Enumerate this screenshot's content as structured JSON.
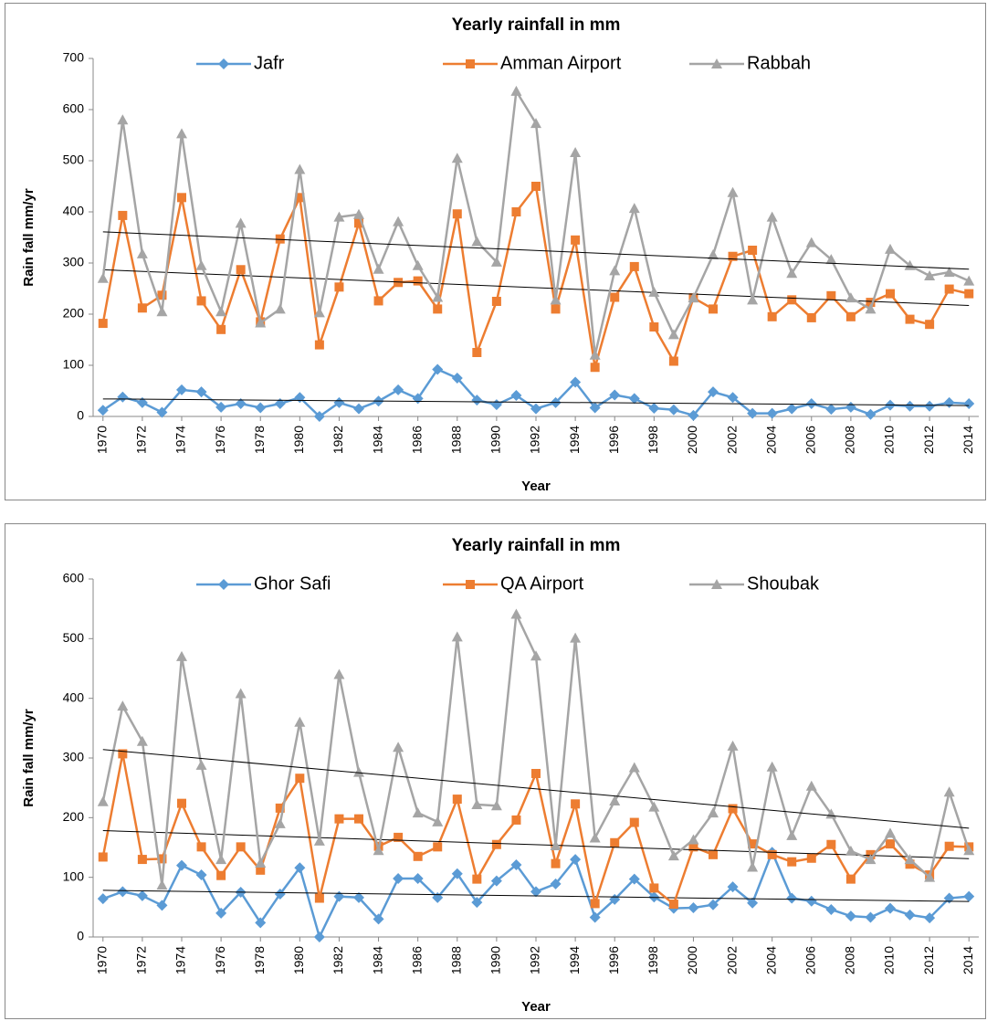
{
  "chart_data": [
    {
      "type": "line",
      "title": "Yearly rainfall in mm",
      "y_label": "Rain fall mm/yr",
      "x_label": "Year",
      "x": [
        1970,
        1971,
        1972,
        1973,
        1974,
        1975,
        1976,
        1977,
        1978,
        1979,
        1980,
        1981,
        1982,
        1983,
        1984,
        1985,
        1986,
        1987,
        1988,
        1989,
        1990,
        1991,
        1992,
        1993,
        1994,
        1995,
        1996,
        1997,
        1998,
        1999,
        2000,
        2001,
        2002,
        2003,
        2004,
        2005,
        2006,
        2007,
        2008,
        2009,
        2010,
        2011,
        2012,
        2013,
        2014
      ],
      "xlim": [
        1969.5,
        2014.5
      ],
      "xticks": [
        1970,
        1972,
        1974,
        1976,
        1978,
        1980,
        1982,
        1984,
        1986,
        1988,
        1990,
        1992,
        1994,
        1996,
        1998,
        2000,
        2002,
        2004,
        2006,
        2008,
        2010,
        2012,
        2014
      ],
      "ylim": [
        0,
        700
      ],
      "yticks": [
        0,
        100,
        200,
        300,
        400,
        500,
        600,
        700
      ],
      "trendline": true,
      "series": [
        {
          "name": "Jafr",
          "color": "#5b9bd5",
          "marker": "diamond",
          "values": [
            12,
            38,
            27,
            8,
            52,
            48,
            18,
            25,
            17,
            25,
            37,
            0,
            27,
            15,
            30,
            52,
            35,
            92,
            75,
            32,
            23,
            41,
            15,
            27,
            67,
            17,
            42,
            35,
            16,
            13,
            2,
            48,
            37,
            6,
            6,
            15,
            25,
            14,
            18,
            4,
            22,
            20,
            20,
            27,
            25
          ]
        },
        {
          "name": "Amman Airport",
          "color": "#ed7d31",
          "marker": "square",
          "values": [
            182,
            393,
            212,
            237,
            428,
            226,
            170,
            287,
            185,
            347,
            428,
            140,
            253,
            378,
            226,
            262,
            265,
            210,
            396,
            125,
            225,
            400,
            450,
            210,
            345,
            96,
            233,
            293,
            175,
            108,
            232,
            210,
            313,
            325,
            195,
            228,
            193,
            236,
            195,
            223,
            240,
            190,
            180,
            249,
            240
          ]
        },
        {
          "name": "Rabbah",
          "color": "#a5a5a5",
          "marker": "triangle",
          "values": [
            270,
            580,
            318,
            205,
            553,
            295,
            205,
            378,
            183,
            210,
            483,
            203,
            390,
            395,
            288,
            381,
            295,
            233,
            505,
            342,
            302,
            636,
            573,
            228,
            516,
            120,
            285,
            407,
            243,
            160,
            232,
            316,
            438,
            228,
            390,
            280,
            340,
            307,
            232,
            210,
            327,
            295,
            275,
            282,
            265
          ]
        }
      ]
    },
    {
      "type": "line",
      "title": "Yearly rainfall in mm",
      "y_label": "Rain fall mm/yr",
      "x_label": "Year",
      "x": [
        1970,
        1971,
        1972,
        1973,
        1974,
        1975,
        1976,
        1977,
        1978,
        1979,
        1980,
        1981,
        1982,
        1983,
        1984,
        1985,
        1986,
        1987,
        1988,
        1989,
        1990,
        1991,
        1992,
        1993,
        1994,
        1995,
        1996,
        1997,
        1998,
        1999,
        2000,
        2001,
        2002,
        2003,
        2004,
        2005,
        2006,
        2007,
        2008,
        2009,
        2010,
        2011,
        2012,
        2013,
        2014
      ],
      "xlim": [
        1969.5,
        2014.5
      ],
      "xticks": [
        1970,
        1972,
        1974,
        1976,
        1978,
        1980,
        1982,
        1984,
        1986,
        1988,
        1990,
        1992,
        1994,
        1996,
        1998,
        2000,
        2002,
        2004,
        2006,
        2008,
        2010,
        2012,
        2014
      ],
      "ylim": [
        0,
        600
      ],
      "yticks": [
        0,
        100,
        200,
        300,
        400,
        500,
        600
      ],
      "trendline": true,
      "series": [
        {
          "name": "Ghor Safi",
          "color": "#5b9bd5",
          "marker": "diamond",
          "values": [
            64,
            76,
            69,
            53,
            120,
            104,
            40,
            75,
            24,
            72,
            116,
            0,
            68,
            66,
            30,
            98,
            98,
            66,
            106,
            58,
            94,
            121,
            76,
            89,
            130,
            33,
            63,
            97,
            67,
            48,
            49,
            54,
            84,
            57,
            142,
            65,
            60,
            46,
            35,
            33,
            48,
            37,
            32,
            65,
            68
          ]
        },
        {
          "name": "QA Airport",
          "color": "#ed7d31",
          "marker": "square",
          "values": [
            134,
            307,
            130,
            131,
            224,
            151,
            103,
            151,
            112,
            216,
            266,
            65,
            198,
            198,
            152,
            167,
            135,
            151,
            231,
            97,
            155,
            196,
            274,
            123,
            223,
            56,
            158,
            192,
            82,
            55,
            151,
            138,
            215,
            156,
            138,
            126,
            132,
            155,
            97,
            138,
            156,
            122,
            104,
            152,
            151
          ]
        },
        {
          "name": "Shoubak",
          "color": "#a5a5a5",
          "marker": "triangle",
          "values": [
            227,
            387,
            328,
            87,
            470,
            288,
            130,
            408,
            124,
            190,
            360,
            161,
            440,
            276,
            145,
            318,
            208,
            193,
            503,
            222,
            220,
            541,
            471,
            153,
            501,
            166,
            228,
            284,
            218,
            136,
            163,
            208,
            320,
            117,
            285,
            170,
            253,
            206,
            144,
            130,
            174,
            130,
            100,
            243,
            145
          ]
        }
      ]
    }
  ]
}
